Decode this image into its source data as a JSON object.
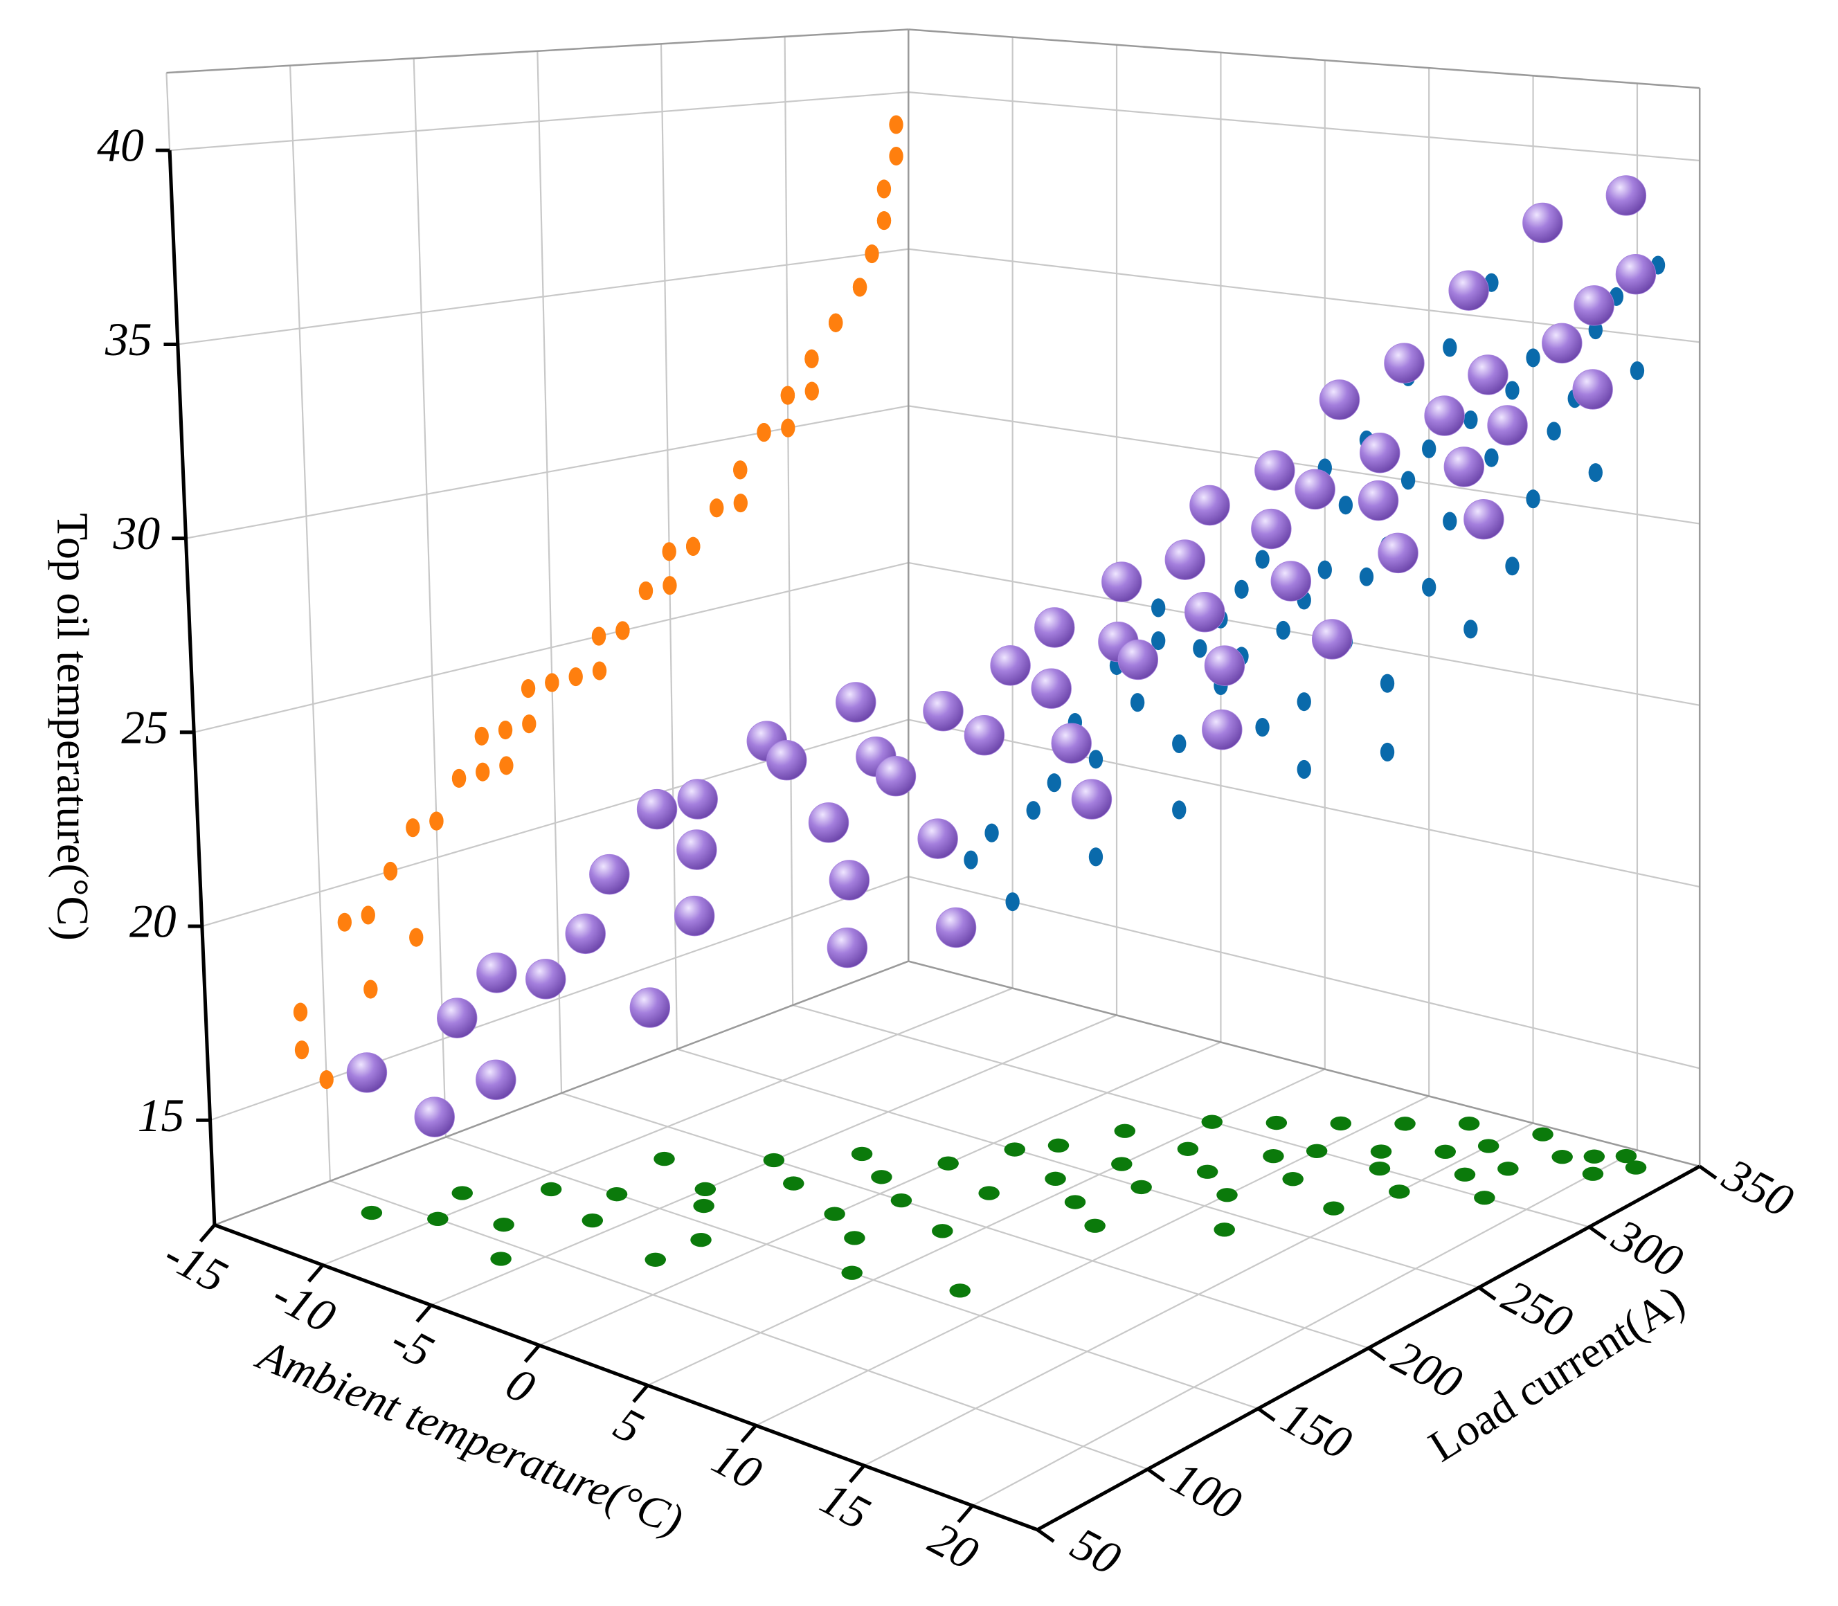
{
  "chart_data": {
    "type": "scatter3d",
    "x_label": "Ambient temperature(°C)",
    "y_label": "Load current(A)",
    "z_label": "Top oil temperature(°C)",
    "xlim": [
      -15,
      23
    ],
    "ylim": [
      50,
      350
    ],
    "zlim": [
      12.3,
      42
    ],
    "xticks": [
      -15,
      -10,
      -5,
      0,
      5,
      10,
      15,
      20
    ],
    "yticks": [
      50,
      100,
      150,
      200,
      250,
      300,
      350
    ],
    "zticks": [
      15,
      20,
      25,
      30,
      35,
      40
    ],
    "grid": true,
    "color": "#a47fdd",
    "projection_colors": [
      "#ff7f0e",
      "#0a6aab",
      "#0b7a0b"
    ],
    "x": [
      -12,
      -11,
      -10,
      -9,
      -8,
      -8,
      -7,
      -6,
      -5,
      -5,
      -4,
      -3,
      -3,
      -2,
      -1,
      0,
      0,
      1,
      1,
      2,
      2,
      3,
      3,
      4,
      4,
      5,
      5,
      6,
      6,
      7,
      7,
      8,
      8,
      9,
      9,
      10,
      10,
      11,
      11,
      12,
      12,
      13,
      13,
      14,
      14,
      15,
      15,
      16,
      16,
      17,
      18,
      18,
      19,
      20,
      20,
      21,
      -6,
      -2,
      4,
      8
    ],
    "y": [
      90,
      120,
      100,
      140,
      110,
      180,
      150,
      130,
      170,
      200,
      160,
      190,
      220,
      140,
      210,
      180,
      230,
      200,
      250,
      170,
      260,
      220,
      280,
      240,
      190,
      260,
      300,
      230,
      280,
      250,
      310,
      270,
      220,
      290,
      320,
      260,
      300,
      280,
      330,
      310,
      240,
      300,
      340,
      320,
      270,
      330,
      290,
      310,
      345,
      320,
      335,
      300,
      340,
      330,
      345,
      340,
      90,
      120,
      150,
      160
    ],
    "z": [
      16,
      17,
      15,
      18,
      19,
      22,
      21,
      20,
      23,
      24,
      22,
      24,
      25,
      21,
      24,
      23,
      25,
      24,
      26,
      22,
      27,
      25,
      28,
      26,
      23,
      27,
      30,
      25,
      29,
      27,
      31,
      28,
      24,
      30,
      33,
      27,
      31,
      29,
      34,
      32,
      26,
      31,
      36,
      33,
      28,
      34,
      30,
      32,
      38,
      33,
      35,
      31,
      36,
      34,
      39,
      37,
      17,
      19,
      21,
      22
    ]
  }
}
